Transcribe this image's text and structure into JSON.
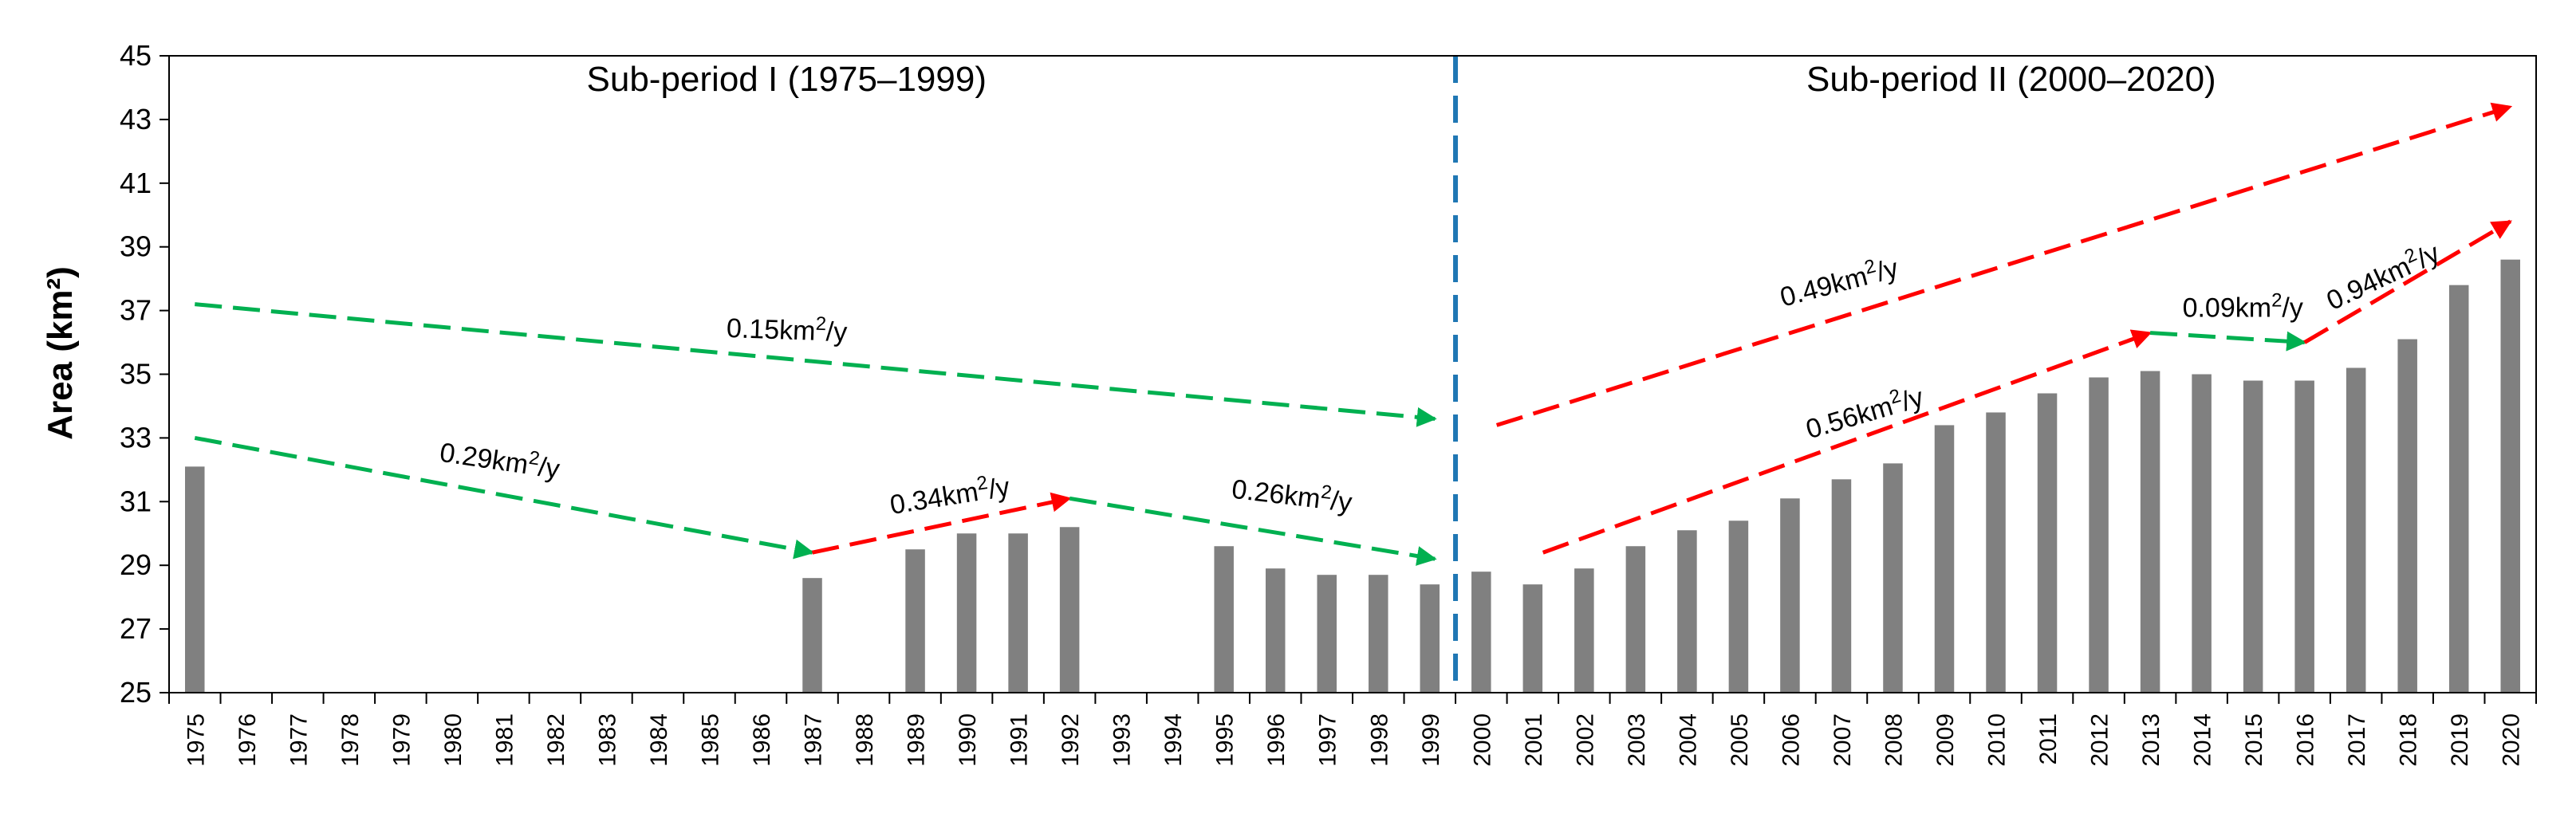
{
  "chart_data": {
    "type": "bar",
    "title": "",
    "xlabel": "",
    "ylabel": "Area (km²)",
    "ylim": [
      25,
      45
    ],
    "yticks": [
      25,
      27,
      29,
      31,
      33,
      35,
      37,
      39,
      41,
      43,
      45
    ],
    "grid": false,
    "categories": [
      "1975",
      "1976",
      "1977",
      "1978",
      "1979",
      "1980",
      "1981",
      "1982",
      "1983",
      "1984",
      "1985",
      "1986",
      "1987",
      "1988",
      "1989",
      "1990",
      "1991",
      "1992",
      "1993",
      "1994",
      "1995",
      "1996",
      "1997",
      "1998",
      "1999",
      "2000",
      "2001",
      "2002",
      "2003",
      "2004",
      "2005",
      "2006",
      "2007",
      "2008",
      "2009",
      "2010",
      "2011",
      "2012",
      "2013",
      "2014",
      "2015",
      "2016",
      "2017",
      "2018",
      "2019",
      "2020"
    ],
    "values": [
      32.1,
      null,
      null,
      null,
      null,
      null,
      null,
      null,
      null,
      null,
      null,
      null,
      28.6,
      null,
      29.5,
      30.0,
      30.0,
      30.2,
      null,
      null,
      29.6,
      28.9,
      28.7,
      28.7,
      28.4,
      28.8,
      28.4,
      28.9,
      29.6,
      30.1,
      30.4,
      31.1,
      31.7,
      32.2,
      33.4,
      33.8,
      34.4,
      34.9,
      35.1,
      35.0,
      34.8,
      34.8,
      35.2,
      36.1,
      37.8,
      38.6
    ],
    "bar_color": "#808080",
    "divider": {
      "between": [
        "1999",
        "2000"
      ],
      "color": "#1f77b4"
    },
    "periods": [
      {
        "label": "Sub-period I (1975–1999)",
        "center_year": 1986.5,
        "y": 43.9
      },
      {
        "label": "Sub-period II (2000–2020)",
        "center_year": 2010.3,
        "y": 43.9
      }
    ],
    "trend_arrows": [
      {
        "from": [
          1975,
          37.2
        ],
        "to": [
          1999.1,
          33.6
        ],
        "color": "#00b050",
        "label": {
          "value": "0.15",
          "at": [
            1986.5,
            36.1
          ],
          "angle": 2.0
        }
      },
      {
        "from": [
          1975,
          33.0
        ],
        "to": [
          1987,
          29.4
        ],
        "color": "#00b050",
        "label": {
          "value": "0.29",
          "at": [
            1980.9,
            32.0
          ],
          "angle": 8.3
        }
      },
      {
        "from": [
          1987,
          29.4
        ],
        "to": [
          1992,
          31.1
        ],
        "color": "#ff0000",
        "label": {
          "value": "0.34",
          "at": [
            1989.7,
            30.9
          ],
          "angle": -9.0
        }
      },
      {
        "from": [
          1992,
          31.1
        ],
        "to": [
          1999.1,
          29.2
        ],
        "color": "#00b050",
        "label": {
          "value": "0.26",
          "at": [
            1996.3,
            30.9
          ],
          "angle": 6.7
        }
      },
      {
        "from": [
          2000.3,
          33.4
        ],
        "to": [
          2020,
          43.4
        ],
        "color": "#ff0000",
        "label": {
          "value": "0.49",
          "at": [
            2007.0,
            37.6
          ],
          "angle": -14.7
        }
      },
      {
        "from": [
          2001.2,
          29.4
        ],
        "to": [
          2013,
          36.3
        ],
        "color": "#ff0000",
        "label": {
          "value": "0.56",
          "at": [
            2007.5,
            33.5
          ],
          "angle": -16.3
        }
      },
      {
        "from": [
          2013,
          36.3
        ],
        "to": [
          2016,
          36.0
        ],
        "color": "#00b050",
        "label": {
          "value": "0.09",
          "at": [
            2014.8,
            36.8
          ],
          "angle": 0
        }
      },
      {
        "from": [
          2016,
          36.0
        ],
        "to": [
          2020,
          39.8
        ],
        "color": "#ff0000",
        "label": {
          "value": "0.94",
          "at": [
            2017.6,
            37.8
          ],
          "angle": -25.0
        }
      }
    ],
    "rate_unit": {
      "prefix": "km",
      "superscript": "2",
      "suffix": "/y"
    }
  }
}
